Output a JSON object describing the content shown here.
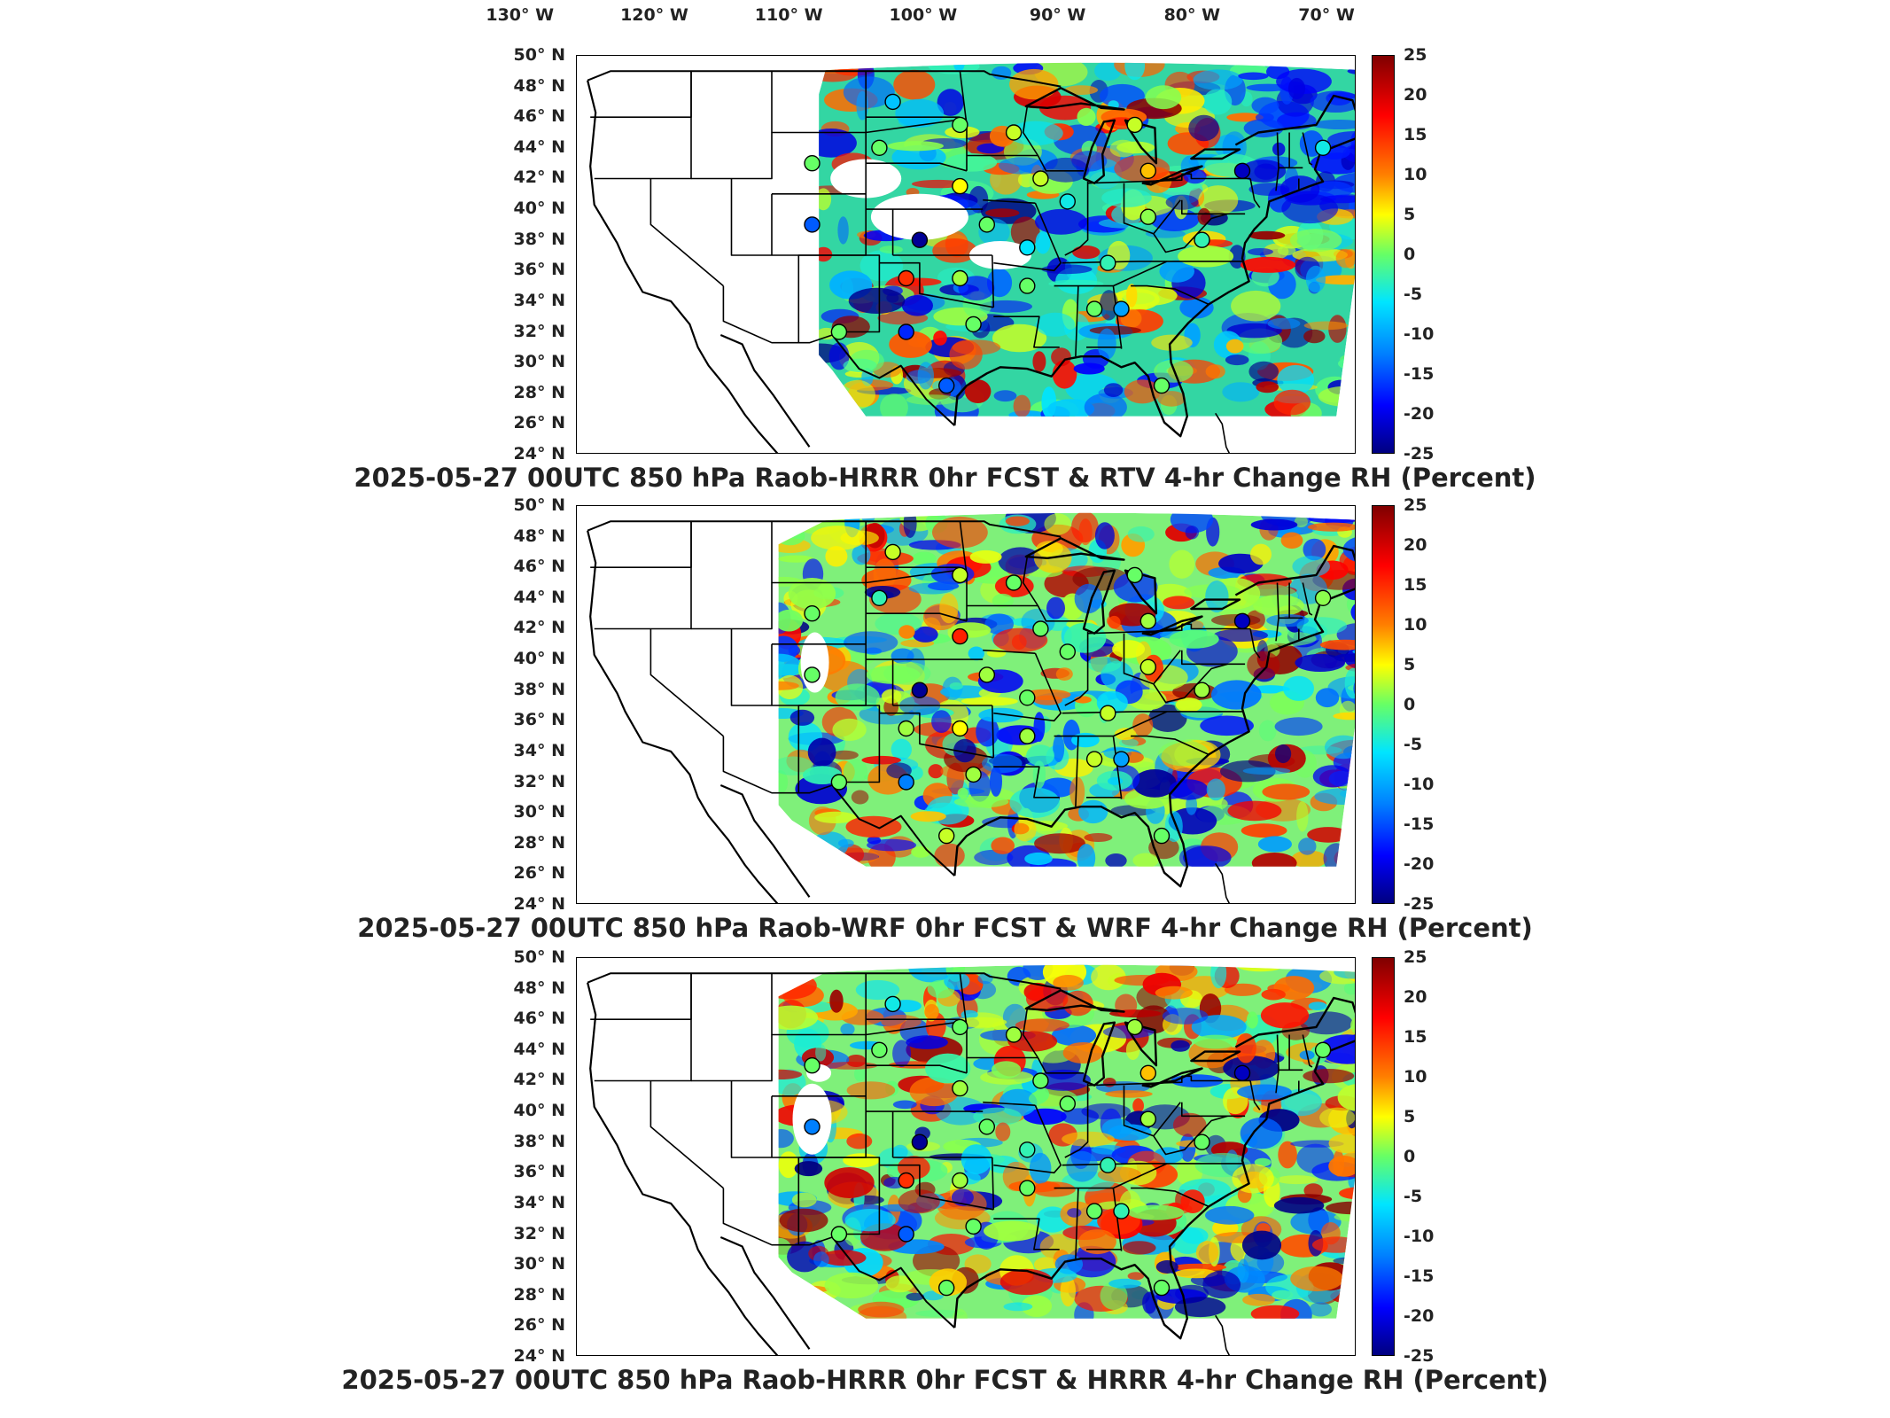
{
  "longitude_labels": [
    "130° W",
    "120° W",
    "110° W",
    "100° W",
    "90° W",
    "80° W",
    "70° W"
  ],
  "latitude_labels": [
    "50° N",
    "48° N",
    "46° N",
    "44° N",
    "42° N",
    "40° N",
    "38° N",
    "36° N",
    "34° N",
    "32° N",
    "30° N",
    "28° N",
    "26° N",
    "24° N"
  ],
  "colorbar_ticks": [
    "25",
    "20",
    "15",
    "10",
    "5",
    "0",
    "-5",
    "-10",
    "-15",
    "-20",
    "-25"
  ],
  "colors": {
    "dark_red": "#800000",
    "red": "#ff0000",
    "orange": "#ff8000",
    "yellow": "#ffff00",
    "green": "#66ff66",
    "cyan": "#00e5ff",
    "blue": "#0080ff",
    "dark_blue": "#000080"
  },
  "panels": [
    {
      "caption": "2025-05-27 00UTC 850 hPa Raob-HRRR 0hr FCST & RTV 4-hr Change RH (Percent)",
      "stations": [
        {
          "lon": -102,
          "lat": 47,
          "value": -8
        },
        {
          "lon": -97,
          "lat": 45.5,
          "value": 0
        },
        {
          "lon": -93,
          "lat": 45,
          "value": 5
        },
        {
          "lon": -108,
          "lat": 43,
          "value": 0
        },
        {
          "lon": -103,
          "lat": 44,
          "value": 0
        },
        {
          "lon": -97,
          "lat": 41.5,
          "value": 8
        },
        {
          "lon": -91,
          "lat": 42,
          "value": 5
        },
        {
          "lon": -89,
          "lat": 40.5,
          "value": -5
        },
        {
          "lon": -83,
          "lat": 42.5,
          "value": 10
        },
        {
          "lon": -84,
          "lat": 45.5,
          "value": 5
        },
        {
          "lon": -76,
          "lat": 42.5,
          "value": -22
        },
        {
          "lon": -70,
          "lat": 44,
          "value": -5
        },
        {
          "lon": -108,
          "lat": 39,
          "value": -14
        },
        {
          "lon": -100,
          "lat": 38,
          "value": -24
        },
        {
          "lon": -95,
          "lat": 39,
          "value": 0
        },
        {
          "lon": -92,
          "lat": 37.5,
          "value": -6
        },
        {
          "lon": -86,
          "lat": 36.5,
          "value": -3
        },
        {
          "lon": -83,
          "lat": 39.5,
          "value": 2
        },
        {
          "lon": -79,
          "lat": 38,
          "value": -3
        },
        {
          "lon": -101,
          "lat": 35.5,
          "value": 17
        },
        {
          "lon": -97,
          "lat": 35.5,
          "value": 3
        },
        {
          "lon": -92,
          "lat": 35,
          "value": 0
        },
        {
          "lon": -87,
          "lat": 33.5,
          "value": 0
        },
        {
          "lon": -85,
          "lat": 33.5,
          "value": -10
        },
        {
          "lon": -106,
          "lat": 32,
          "value": 0
        },
        {
          "lon": -101,
          "lat": 32,
          "value": -17
        },
        {
          "lon": -96,
          "lat": 32.5,
          "value": 0
        },
        {
          "lon": -98,
          "lat": 28.5,
          "value": -14
        },
        {
          "lon": -82,
          "lat": 28.5,
          "value": 0
        }
      ]
    },
    {
      "caption": "2025-05-27 00UTC 850 hPa Raob-WRF 0hr FCST & WRF 4-hr Change RH (Percent)",
      "stations": [
        {
          "lon": -102,
          "lat": 47,
          "value": 5
        },
        {
          "lon": -97,
          "lat": 45.5,
          "value": 5
        },
        {
          "lon": -93,
          "lat": 45,
          "value": 0
        },
        {
          "lon": -108,
          "lat": 43,
          "value": 0
        },
        {
          "lon": -103,
          "lat": 44,
          "value": -3
        },
        {
          "lon": -97,
          "lat": 41.5,
          "value": 18
        },
        {
          "lon": -91,
          "lat": 42,
          "value": 0
        },
        {
          "lon": -89,
          "lat": 40.5,
          "value": 0
        },
        {
          "lon": -83,
          "lat": 42.5,
          "value": 3
        },
        {
          "lon": -84,
          "lat": 45.5,
          "value": 0
        },
        {
          "lon": -76,
          "lat": 42.5,
          "value": -22
        },
        {
          "lon": -70,
          "lat": 44,
          "value": 2
        },
        {
          "lon": -108,
          "lat": 39,
          "value": 0
        },
        {
          "lon": -100,
          "lat": 38,
          "value": -24
        },
        {
          "lon": -95,
          "lat": 39,
          "value": 3
        },
        {
          "lon": -92,
          "lat": 37.5,
          "value": 0
        },
        {
          "lon": -86,
          "lat": 36.5,
          "value": 5
        },
        {
          "lon": -83,
          "lat": 39.5,
          "value": 5
        },
        {
          "lon": -79,
          "lat": 38,
          "value": 3
        },
        {
          "lon": -101,
          "lat": 35.5,
          "value": 3
        },
        {
          "lon": -97,
          "lat": 35.5,
          "value": 8
        },
        {
          "lon": -92,
          "lat": 35,
          "value": 3
        },
        {
          "lon": -87,
          "lat": 33.5,
          "value": 5
        },
        {
          "lon": -85,
          "lat": 33.5,
          "value": -10
        },
        {
          "lon": -106,
          "lat": 32,
          "value": 0
        },
        {
          "lon": -101,
          "lat": 32,
          "value": -12
        },
        {
          "lon": -96,
          "lat": 32.5,
          "value": 3
        },
        {
          "lon": -98,
          "lat": 28.5,
          "value": 5
        },
        {
          "lon": -82,
          "lat": 28.5,
          "value": 0
        }
      ]
    },
    {
      "caption": "2025-05-27 00UTC 850 hPa Raob-HRRR 0hr FCST & HRRR 4-hr Change RH (Percent)",
      "stations": [
        {
          "lon": -102,
          "lat": 47,
          "value": -5
        },
        {
          "lon": -97,
          "lat": 45.5,
          "value": 0
        },
        {
          "lon": -93,
          "lat": 45,
          "value": 3
        },
        {
          "lon": -108,
          "lat": 43,
          "value": 0
        },
        {
          "lon": -103,
          "lat": 44,
          "value": 0
        },
        {
          "lon": -97,
          "lat": 41.5,
          "value": 3
        },
        {
          "lon": -91,
          "lat": 42,
          "value": 0
        },
        {
          "lon": -89,
          "lat": 40.5,
          "value": 0
        },
        {
          "lon": -83,
          "lat": 42.5,
          "value": 10
        },
        {
          "lon": -84,
          "lat": 45.5,
          "value": 3
        },
        {
          "lon": -76,
          "lat": 42.5,
          "value": -22
        },
        {
          "lon": -70,
          "lat": 44,
          "value": 0
        },
        {
          "lon": -108,
          "lat": 39,
          "value": -12
        },
        {
          "lon": -100,
          "lat": 38,
          "value": -24
        },
        {
          "lon": -95,
          "lat": 39,
          "value": 0
        },
        {
          "lon": -92,
          "lat": 37.5,
          "value": -3
        },
        {
          "lon": -86,
          "lat": 36.5,
          "value": -3
        },
        {
          "lon": -83,
          "lat": 39.5,
          "value": 3
        },
        {
          "lon": -79,
          "lat": 38,
          "value": 0
        },
        {
          "lon": -101,
          "lat": 35.5,
          "value": 17
        },
        {
          "lon": -97,
          "lat": 35.5,
          "value": 3
        },
        {
          "lon": -92,
          "lat": 35,
          "value": 0
        },
        {
          "lon": -87,
          "lat": 33.5,
          "value": 0
        },
        {
          "lon": -85,
          "lat": 33.5,
          "value": -3
        },
        {
          "lon": -106,
          "lat": 32,
          "value": 0
        },
        {
          "lon": -101,
          "lat": 32,
          "value": -14
        },
        {
          "lon": -96,
          "lat": 32.5,
          "value": 0
        },
        {
          "lon": -98,
          "lat": 28.5,
          "value": 0
        },
        {
          "lon": -82,
          "lat": 28.5,
          "value": 0
        }
      ]
    }
  ]
}
